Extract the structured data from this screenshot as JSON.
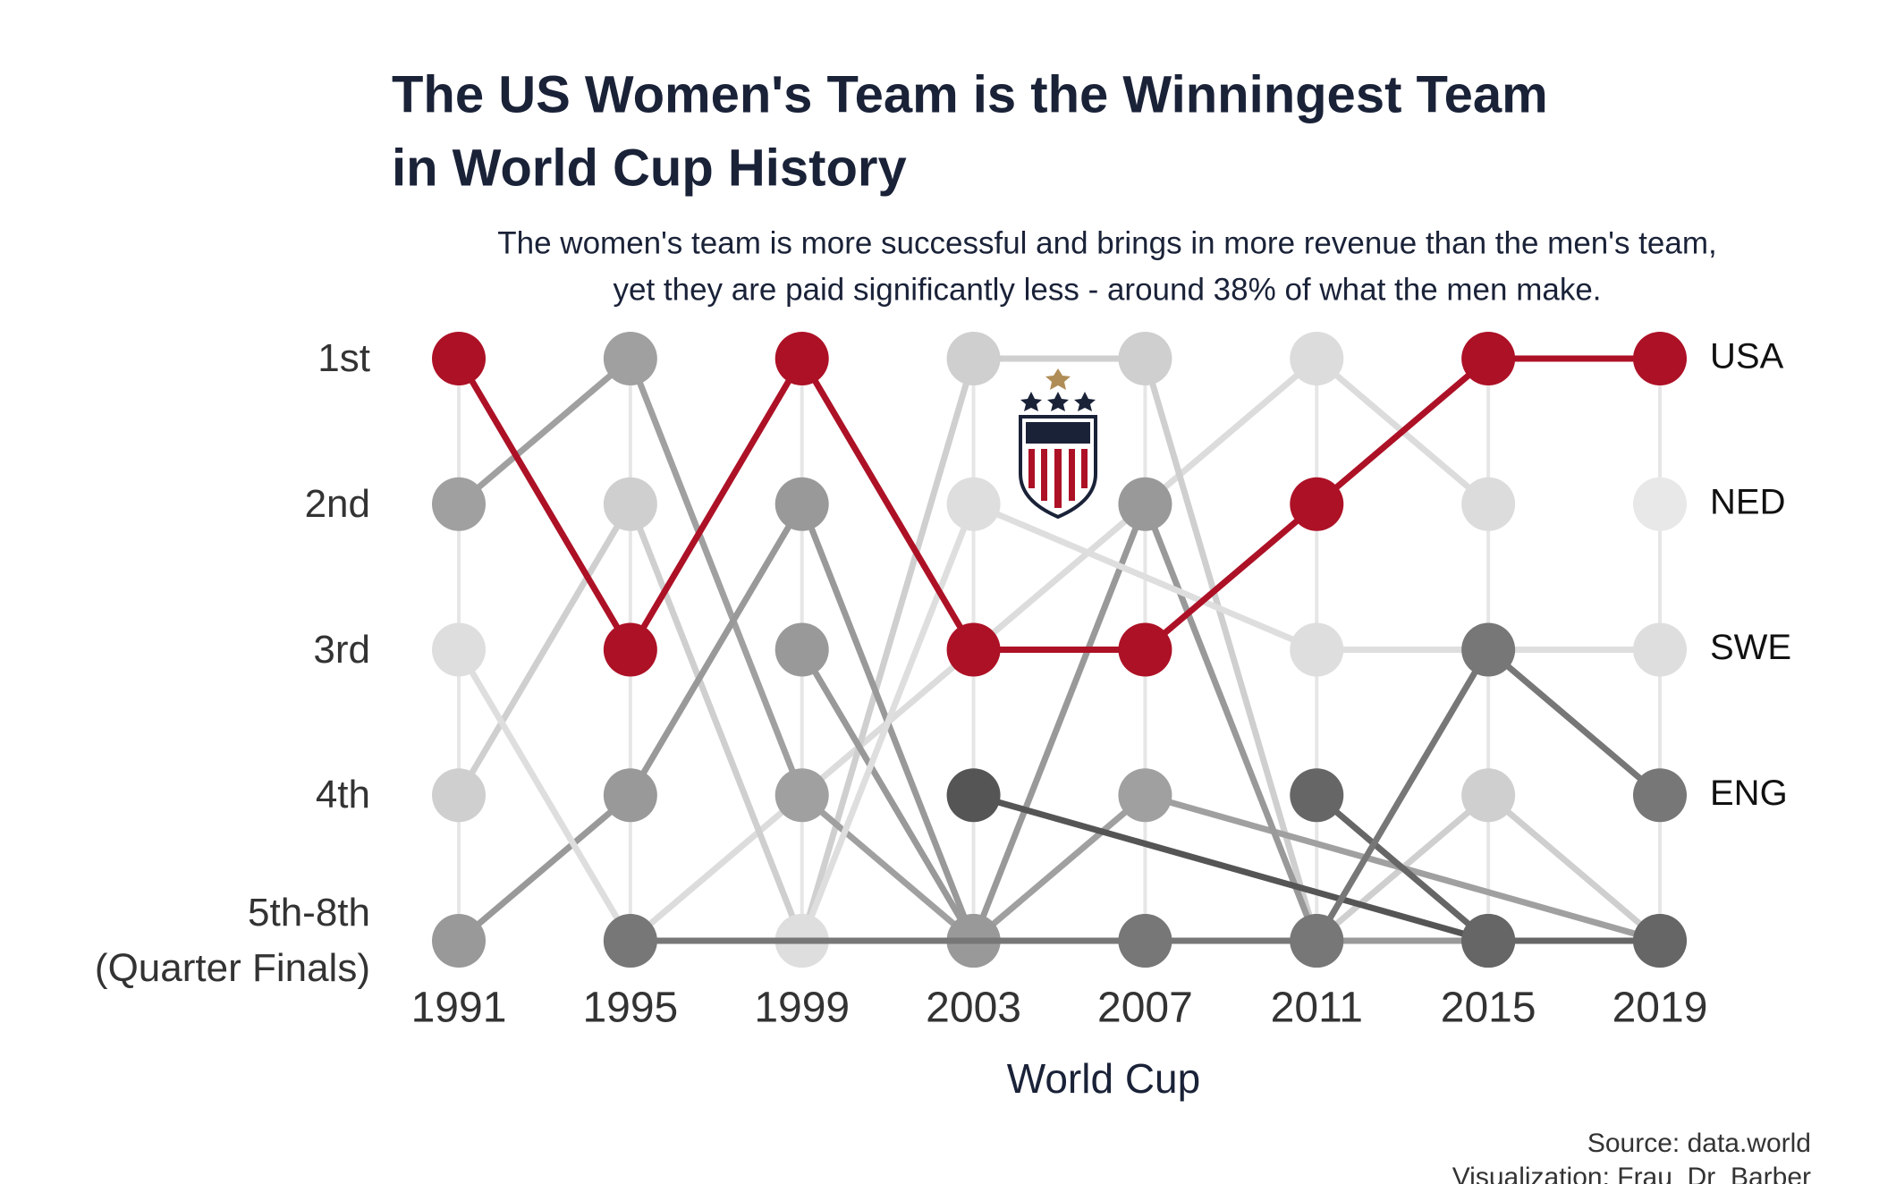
{
  "chart_data": {
    "type": "line",
    "title": [
      "The US Women's Team is the Winningest Team",
      "in World Cup History"
    ],
    "subtitle": [
      "The women's team is more successful and brings in more revenue than the men's team,",
      "yet they are paid significantly less - around 38% of what the men make."
    ],
    "x_label": "World Cup",
    "source": [
      "Source: data.world",
      "Visualization: Frau_Dr_Barber"
    ],
    "xlim": [
      1991,
      2019
    ],
    "xticks": [
      1991,
      1995,
      1999,
      2003,
      2007,
      2011,
      2015,
      2019
    ],
    "ylim": [
      1,
      5
    ],
    "y_reversed": true,
    "yticks": [
      {
        "value": 1,
        "label": "1st"
      },
      {
        "value": 2,
        "label": "2nd"
      },
      {
        "value": 3,
        "label": "3rd"
      },
      {
        "value": 4,
        "label": "4th"
      },
      {
        "value": 5,
        "label": "5th-8th\n(Quarter Finals)"
      }
    ],
    "grid": true,
    "series": [
      {
        "color": "#dcdcdc",
        "x": [
          1995,
          2011,
          2015
        ],
        "values": [
          5,
          1,
          2
        ]
      },
      {
        "color": "#cfcfcf",
        "x": [
          1991,
          1995,
          1999,
          2003,
          2007,
          2011,
          2015,
          2019
        ],
        "values": [
          4,
          2,
          5,
          1,
          1,
          5,
          4,
          5
        ]
      },
      {
        "color": "#a0a0a0",
        "x": [
          1991,
          1995,
          1999,
          2003,
          2007,
          2019
        ],
        "values": [
          2,
          1,
          4,
          5,
          4,
          5
        ]
      },
      {
        "color": "#999999",
        "x": [
          1991,
          1995,
          1999,
          2003,
          2007,
          2015
        ],
        "values": [
          5,
          4,
          2,
          5,
          5,
          5
        ]
      },
      {
        "color": "#999999",
        "x": [
          1999,
          2003,
          2007,
          2011
        ],
        "values": [
          3,
          5,
          2,
          5
        ]
      },
      {
        "color": "#555555",
        "x": [
          2003,
          2015
        ],
        "values": [
          4,
          5
        ]
      },
      {
        "color": "#666666",
        "x": [
          2011,
          2015,
          2019
        ],
        "values": [
          4,
          5,
          5
        ]
      },
      {
        "name": "NED",
        "color": "#e8e8e8",
        "x": [
          2019
        ],
        "values": [
          2
        ]
      },
      {
        "name": "SWE",
        "color": "#dedede",
        "x": [
          1991,
          1995,
          1999,
          2003,
          2011,
          2019
        ],
        "values": [
          3,
          5,
          5,
          2,
          3,
          3
        ]
      },
      {
        "name": "ENG",
        "color": "#777777",
        "x": [
          1995,
          2007,
          2011,
          2015,
          2019
        ],
        "values": [
          5,
          5,
          5,
          3,
          4
        ]
      },
      {
        "name": "USA",
        "color": "#ad1126",
        "x": [
          1991,
          1995,
          1999,
          2003,
          2007,
          2011,
          2015,
          2019
        ],
        "values": [
          1,
          3,
          1,
          3,
          3,
          2,
          1,
          1
        ]
      }
    ]
  }
}
